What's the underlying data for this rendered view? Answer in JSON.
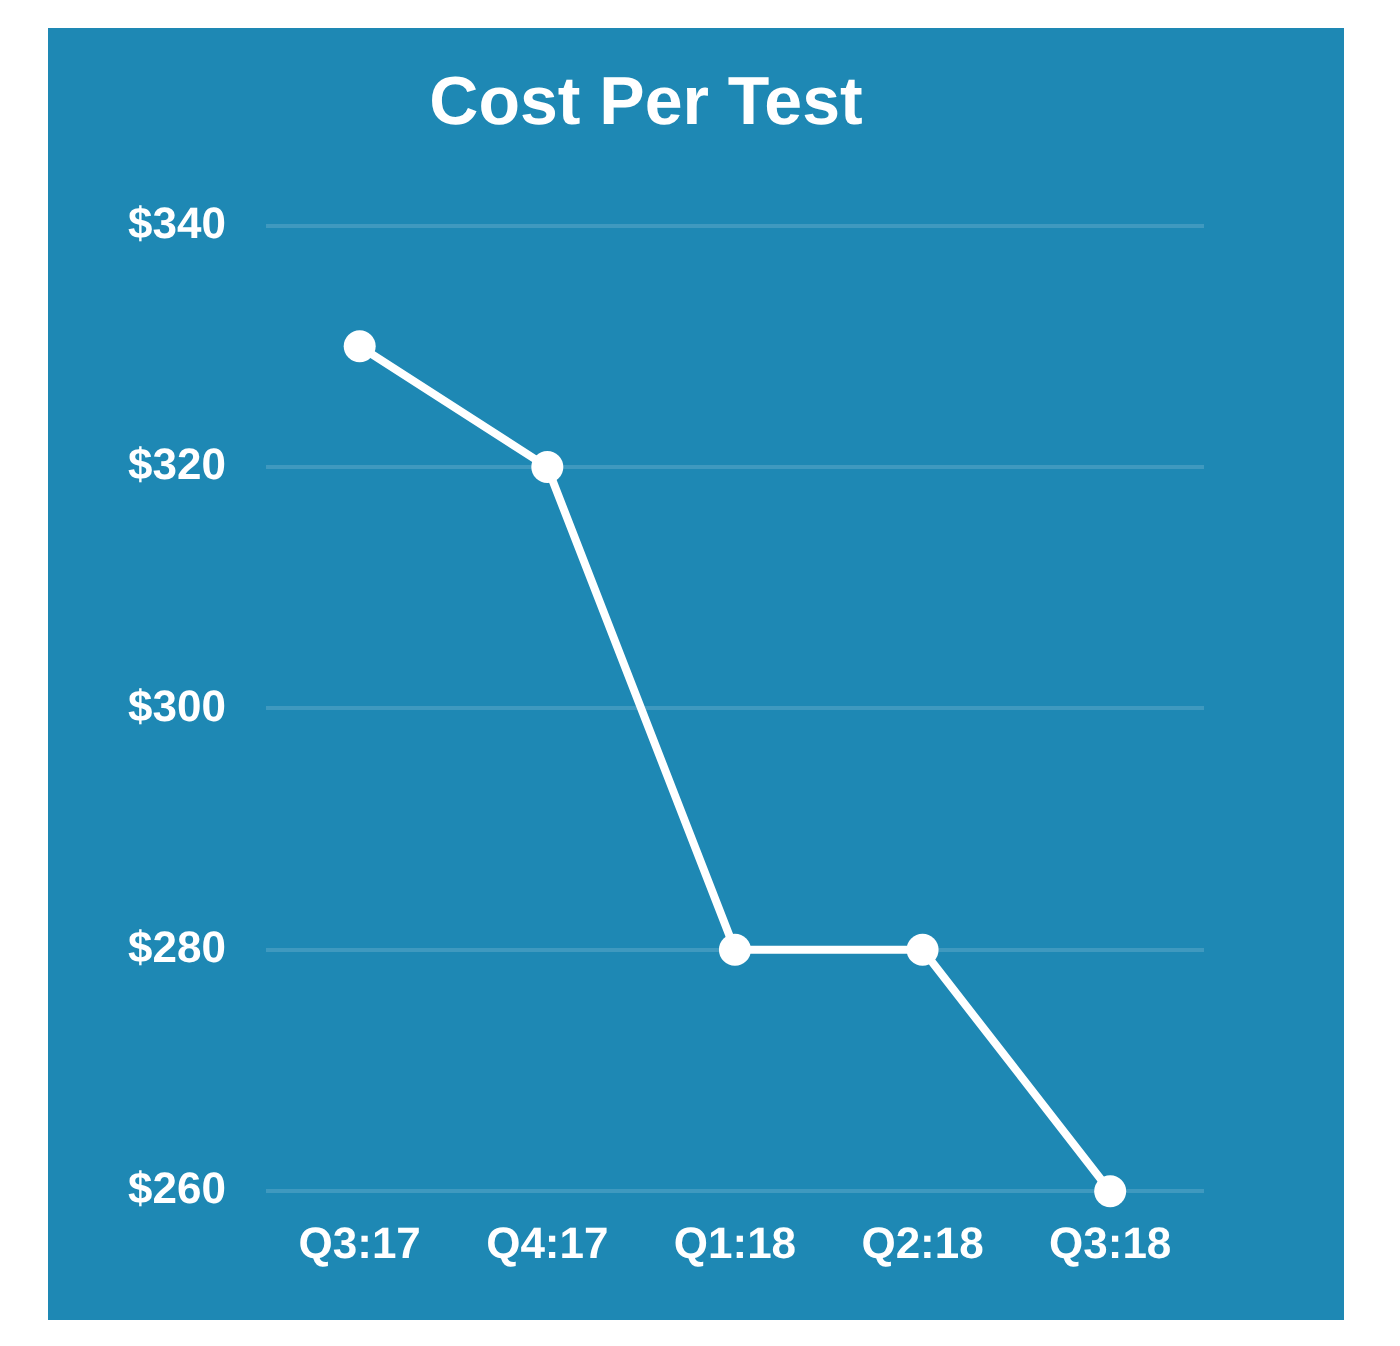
{
  "chart_data": {
    "type": "line",
    "title": "Cost Per Test",
    "categories": [
      "Q3:17",
      "Q4:17",
      "Q1:18",
      "Q2:18",
      "Q3:18"
    ],
    "series": [
      {
        "color": "#ffffff",
        "values": [
          330,
          320,
          280,
          280,
          260
        ]
      }
    ],
    "ylim": [
      260,
      340
    ],
    "yticks": [
      {
        "value": 260,
        "label": "$260"
      },
      {
        "value": 280,
        "label": "$280"
      },
      {
        "value": 300,
        "label": "$300"
      },
      {
        "value": 320,
        "label": "$320"
      },
      {
        "value": 340,
        "label": "$340"
      }
    ],
    "grid": "y",
    "legend": false,
    "marker": "circle",
    "line_style": "solid"
  }
}
